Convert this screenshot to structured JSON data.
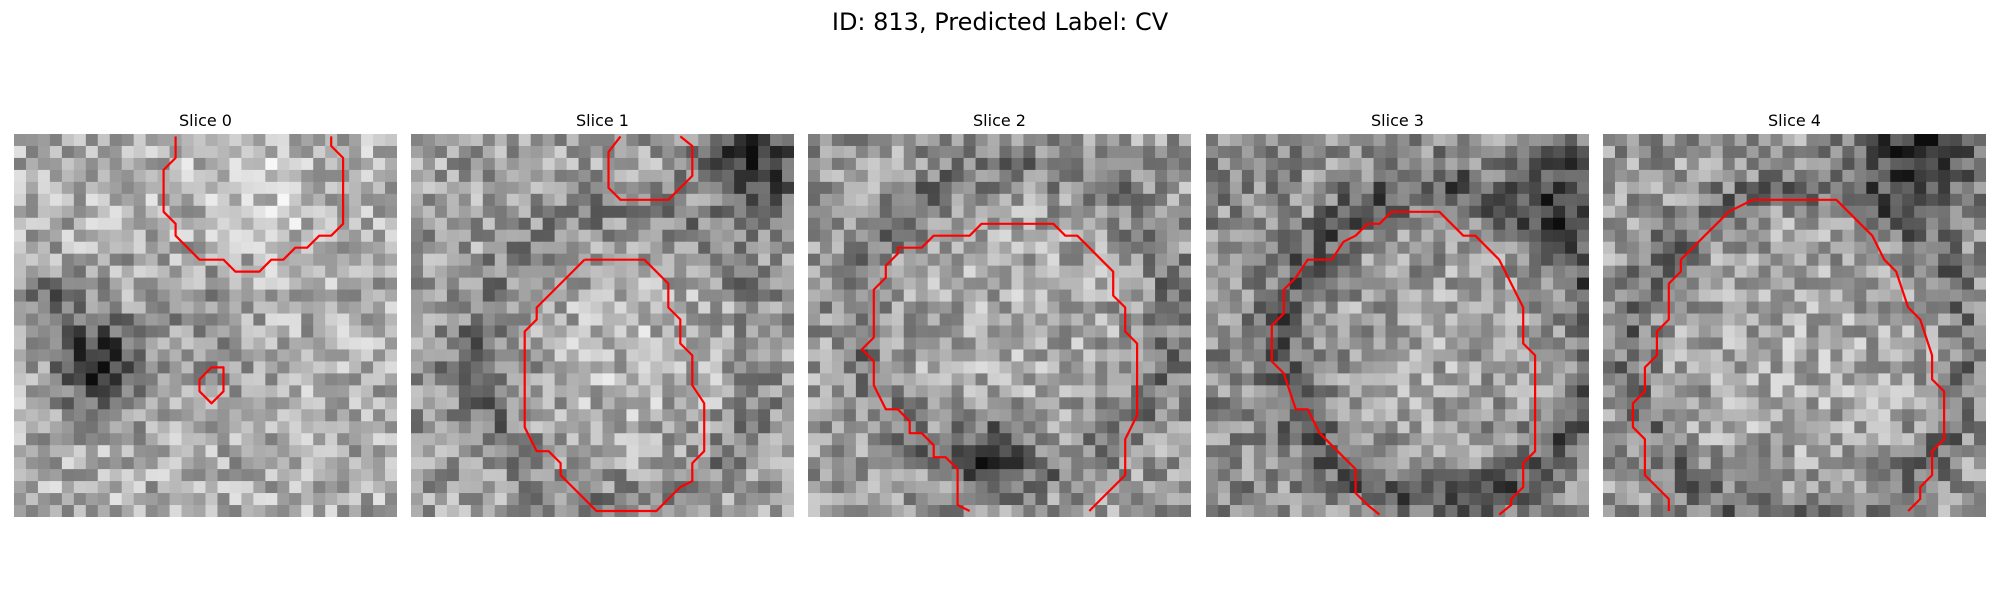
{
  "title": "ID: 813, Predicted Label: CV",
  "contour_color": "#ff0000",
  "panels": [
    {
      "title": "Slice 0"
    },
    {
      "title": "Slice 1"
    },
    {
      "title": "Slice 2"
    },
    {
      "title": "Slice 3"
    },
    {
      "title": "Slice 4"
    }
  ]
}
